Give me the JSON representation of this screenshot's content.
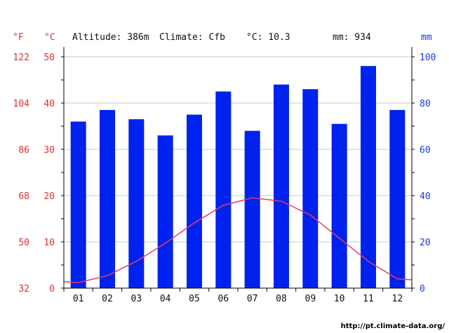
{
  "header": {
    "altitude": "Altitude: 386m",
    "climate": "Climate: Cfb",
    "mean_temp": "°C: 10.3",
    "precip_total": "mm: 934"
  },
  "units": {
    "fahrenheit": "°F",
    "celsius": "°C",
    "mm": "mm"
  },
  "footer": "http://pt.climate-data.org/",
  "colors": {
    "precip": "#0022ee",
    "temp": "#e0405a",
    "f_axis": "#e03030",
    "c_axis": "#e03030",
    "mm_axis": "#1a3adf",
    "grid": "#c8c8c8"
  },
  "chart_data": {
    "type": "bar",
    "categories": [
      "01",
      "02",
      "03",
      "04",
      "05",
      "06",
      "07",
      "08",
      "09",
      "10",
      "11",
      "12"
    ],
    "series": [
      {
        "type": "bar",
        "axis": "right",
        "unit": "mm",
        "values": [
          72,
          77,
          73,
          66,
          75,
          85,
          68,
          88,
          86,
          71,
          96,
          77
        ]
      },
      {
        "type": "line",
        "axis": "left",
        "unit": "°C",
        "values": [
          1.2,
          2.7,
          5.8,
          9.7,
          14.1,
          17.9,
          19.5,
          18.8,
          15.8,
          10.8,
          5.8,
          2.0
        ]
      }
    ],
    "y_left_celsius": {
      "ticks": [
        "0",
        "10",
        "20",
        "30",
        "40",
        "50"
      ],
      "range": [
        0,
        50
      ]
    },
    "y_left_fahrenheit": {
      "ticks": [
        "32",
        "50",
        "68",
        "86",
        "104",
        "122"
      ]
    },
    "y_right_mm": {
      "ticks": [
        "0",
        "20",
        "40",
        "60",
        "80",
        "100"
      ],
      "range": [
        0,
        100
      ]
    },
    "grid": true
  }
}
